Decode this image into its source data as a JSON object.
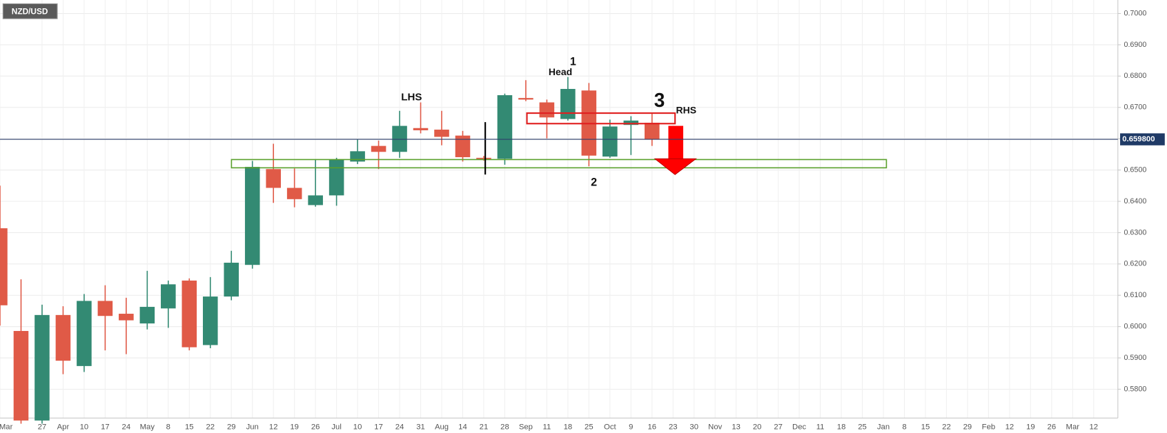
{
  "chart_data": {
    "type": "candlestick",
    "title": "NZD/USD",
    "categories": [
      "Mar",
      null,
      "27",
      "Apr",
      "10",
      "17",
      "24",
      "May",
      "8",
      "15",
      "22",
      "29",
      "Jun",
      "12",
      "19",
      "26",
      "Jul",
      "10",
      "17",
      "24",
      "31",
      "Aug",
      "14",
      "21",
      "28",
      "Sep",
      "11",
      "18",
      "25",
      "Oct",
      "9",
      "16",
      "23",
      "30",
      "Nov",
      "13",
      "20",
      "27",
      "Dec",
      "11",
      "18",
      "25",
      "Jan",
      "8",
      "15",
      "22",
      "29",
      "Feb",
      "12",
      "19",
      "26",
      "Mar",
      "12"
    ],
    "open": [
      0.6314,
      0.5986,
      0.57,
      0.6037,
      0.5874,
      0.6082,
      0.6041,
      0.601,
      0.6058,
      0.6147,
      0.5941,
      0.6096,
      0.6197,
      0.6503,
      0.6443,
      0.6388,
      0.6419,
      0.6527,
      0.6577,
      0.6558,
      0.6634,
      0.6629,
      0.661,
      0.6539,
      0.6536,
      0.673,
      0.6716,
      0.6663,
      0.6754,
      0.6543,
      0.6644,
      0.6651,
      null,
      null,
      null,
      null,
      null,
      null,
      null,
      null,
      null,
      null,
      null,
      null,
      null,
      null,
      null,
      null,
      null,
      null,
      null,
      null,
      null
    ],
    "high": [
      0.645,
      0.6151,
      0.607,
      0.6065,
      0.6104,
      0.6132,
      0.6092,
      0.6178,
      0.6147,
      0.6154,
      0.6158,
      0.6242,
      0.6529,
      0.6584,
      0.6505,
      0.6534,
      0.6539,
      0.6598,
      0.6594,
      0.6689,
      0.6716,
      0.6689,
      0.6625,
      0.6545,
      0.6744,
      0.6787,
      0.6725,
      0.6797,
      0.6778,
      0.6661,
      0.6672,
      0.668,
      null,
      null,
      null,
      null,
      null,
      null,
      null,
      null,
      null,
      null,
      null,
      null,
      null,
      null,
      null,
      null,
      null,
      null,
      null,
      null,
      null
    ],
    "low": [
      0.6003,
      0.569,
      0.569,
      0.5848,
      0.5855,
      0.5924,
      0.5912,
      0.5991,
      0.5996,
      0.5924,
      0.5931,
      0.6084,
      0.6185,
      0.6395,
      0.6381,
      0.6383,
      0.6386,
      0.6519,
      0.6503,
      0.6539,
      0.6617,
      0.6579,
      0.6527,
      0.653,
      0.6517,
      0.672,
      0.6601,
      0.6658,
      0.6512,
      0.6539,
      0.6548,
      0.6577,
      null,
      null,
      null,
      null,
      null,
      null,
      null,
      null,
      null,
      null,
      null,
      null,
      null,
      null,
      null,
      null,
      null,
      null,
      null,
      null,
      null
    ],
    "close": [
      0.6068,
      0.57,
      0.6037,
      0.5891,
      0.6082,
      0.6034,
      0.602,
      0.6063,
      0.6135,
      0.5934,
      0.6096,
      0.6204,
      0.651,
      0.6443,
      0.6407,
      0.6419,
      0.6534,
      0.656,
      0.6558,
      0.6641,
      0.6627,
      0.6606,
      0.6541,
      0.6537,
      0.6739,
      0.6725,
      0.6668,
      0.6759,
      0.6546,
      0.6639,
      0.6658,
      0.6598,
      null,
      null,
      null,
      null,
      null,
      null,
      null,
      null,
      null,
      null,
      null,
      null,
      null,
      null,
      null,
      null,
      null,
      null,
      null,
      null,
      null
    ],
    "up_color": "#338a73",
    "down_color": "#e05a47",
    "ylim": [
      0.5708,
      0.7043
    ],
    "yticks": [
      {
        "value": 0.58,
        "label": "0.5800"
      },
      {
        "value": 0.59,
        "label": "0.5900"
      },
      {
        "value": 0.6,
        "label": "0.6000"
      },
      {
        "value": 0.61,
        "label": "0.6100"
      },
      {
        "value": 0.62,
        "label": "0.6200"
      },
      {
        "value": 0.63,
        "label": "0.6300"
      },
      {
        "value": 0.64,
        "label": "0.6400"
      },
      {
        "value": 0.65,
        "label": "0.6500"
      },
      {
        "value": 0.66,
        "label": "0.6600"
      },
      {
        "value": 0.67,
        "label": "0.6700"
      },
      {
        "value": 0.68,
        "label": "0.6800"
      },
      {
        "value": 0.69,
        "label": "0.6900"
      },
      {
        "value": 0.7,
        "label": "0.7000"
      }
    ],
    "current_price": {
      "value": 0.6598,
      "label": "0.659800"
    },
    "grid": true,
    "annotations": {
      "lhs": "LHS",
      "head": "Head",
      "one": "1",
      "two": "2",
      "three": "3",
      "rhs": "RHS"
    }
  }
}
